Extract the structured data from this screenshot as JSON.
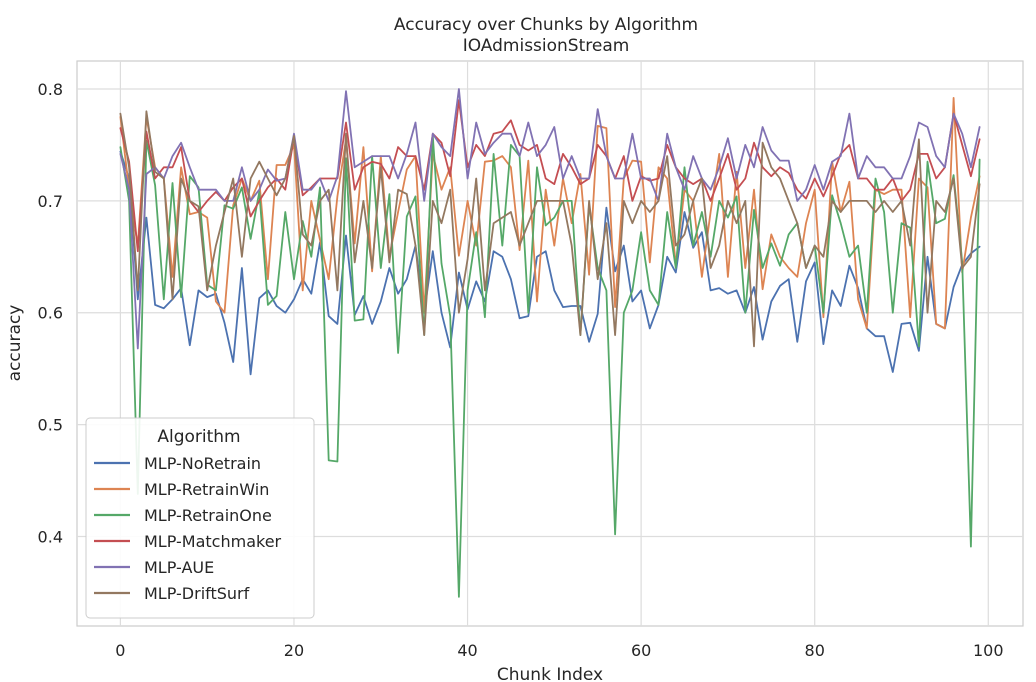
{
  "chart_data": {
    "type": "line",
    "title": "Accuracy over Chunks by Algorithm",
    "subtitle": "IOAdmissionStream",
    "xlabel": "Chunk Index",
    "ylabel": "accuracy",
    "xlim": [
      -5,
      104
    ],
    "ylim": [
      0.32,
      0.825
    ],
    "x_ticks": [
      0,
      20,
      40,
      60,
      80,
      100
    ],
    "y_ticks": [
      0.4,
      0.5,
      0.6,
      0.7,
      0.8
    ],
    "x_tick_labels": [
      "0",
      "20",
      "40",
      "60",
      "80",
      "100"
    ],
    "y_tick_labels": [
      "0.4",
      "0.5",
      "0.6",
      "0.7",
      "0.8"
    ],
    "grid": true,
    "legend": {
      "title": "Algorithm",
      "placement": "lower-left"
    },
    "series": [
      {
        "name": "MLP-NoRetrain",
        "color": "#4c72b0",
        "x": [
          0,
          1,
          2,
          3,
          4,
          5,
          6,
          7,
          8,
          9,
          10,
          11,
          12,
          13,
          14,
          15,
          16,
          17,
          18,
          19,
          20,
          21,
          22,
          23,
          24,
          25,
          26,
          27,
          28,
          29,
          30,
          31,
          32,
          33,
          34,
          35,
          36,
          37,
          38,
          39,
          40,
          41,
          42,
          43,
          44,
          45,
          46,
          47,
          48,
          49,
          50,
          51,
          52,
          53,
          54,
          55,
          56,
          57,
          58,
          59,
          60,
          61,
          62,
          63,
          64,
          65,
          66,
          67,
          68,
          69,
          70,
          71,
          72,
          73,
          74,
          75,
          76,
          77,
          78,
          79,
          80,
          81,
          82,
          83,
          84,
          85,
          86,
          87,
          88,
          89,
          90,
          91,
          92,
          93,
          94,
          95,
          96,
          97,
          98,
          99
        ],
        "values": [
          0.744,
          0.72,
          0.612,
          0.685,
          0.607,
          0.604,
          0.612,
          0.622,
          0.571,
          0.62,
          0.614,
          0.617,
          0.591,
          0.556,
          0.64,
          0.545,
          0.613,
          0.62,
          0.606,
          0.6,
          0.612,
          0.63,
          0.617,
          0.663,
          0.597,
          0.59,
          0.669,
          0.598,
          0.615,
          0.59,
          0.61,
          0.64,
          0.617,
          0.63,
          0.66,
          0.6,
          0.655,
          0.6,
          0.569,
          0.636,
          0.603,
          0.628,
          0.61,
          0.655,
          0.65,
          0.63,
          0.595,
          0.597,
          0.65,
          0.655,
          0.62,
          0.605,
          0.606,
          0.606,
          0.574,
          0.599,
          0.694,
          0.637,
          0.66,
          0.61,
          0.62,
          0.586,
          0.607,
          0.65,
          0.636,
          0.69,
          0.658,
          0.672,
          0.62,
          0.622,
          0.617,
          0.62,
          0.6,
          0.623,
          0.576,
          0.61,
          0.624,
          0.63,
          0.574,
          0.628,
          0.645,
          0.572,
          0.62,
          0.606,
          0.642,
          0.622,
          0.586,
          0.579,
          0.579,
          0.547,
          0.59,
          0.591,
          0.566,
          0.65,
          0.59,
          0.586,
          0.623,
          0.643,
          0.653,
          0.659
        ]
      },
      {
        "name": "MLP-RetrainWin",
        "color": "#dd8452",
        "x": [
          0,
          1,
          2,
          3,
          4,
          5,
          6,
          7,
          8,
          9,
          10,
          11,
          12,
          13,
          14,
          15,
          16,
          17,
          18,
          19,
          20,
          21,
          22,
          23,
          24,
          25,
          26,
          27,
          28,
          29,
          30,
          31,
          32,
          33,
          34,
          35,
          36,
          37,
          38,
          39,
          40,
          41,
          42,
          43,
          44,
          45,
          46,
          47,
          48,
          49,
          50,
          51,
          52,
          53,
          54,
          55,
          56,
          57,
          58,
          59,
          60,
          61,
          62,
          63,
          64,
          65,
          66,
          67,
          68,
          69,
          70,
          71,
          72,
          73,
          74,
          75,
          76,
          77,
          78,
          79,
          80,
          81,
          82,
          83,
          84,
          85,
          86,
          87,
          88,
          89,
          90,
          91,
          92,
          93,
          94,
          95,
          96,
          97,
          98,
          99
        ],
        "values": [
          0.775,
          0.71,
          0.66,
          0.775,
          0.73,
          0.72,
          0.632,
          0.73,
          0.688,
          0.69,
          0.685,
          0.61,
          0.6,
          0.696,
          0.72,
          0.7,
          0.718,
          0.63,
          0.732,
          0.732,
          0.75,
          0.62,
          0.7,
          0.665,
          0.63,
          0.704,
          0.755,
          0.662,
          0.748,
          0.637,
          0.74,
          0.65,
          0.69,
          0.728,
          0.74,
          0.6,
          0.742,
          0.71,
          0.73,
          0.651,
          0.7,
          0.66,
          0.735,
          0.736,
          0.74,
          0.73,
          0.656,
          0.736,
          0.61,
          0.71,
          0.66,
          0.72,
          0.68,
          0.724,
          0.634,
          0.767,
          0.765,
          0.605,
          0.72,
          0.736,
          0.735,
          0.645,
          0.73,
          0.72,
          0.643,
          0.71,
          0.7,
          0.632,
          0.69,
          0.742,
          0.632,
          0.726,
          0.64,
          0.71,
          0.621,
          0.67,
          0.65,
          0.64,
          0.632,
          0.68,
          0.71,
          0.596,
          0.735,
          0.69,
          0.717,
          0.612,
          0.586,
          0.71,
          0.706,
          0.71,
          0.71,
          0.596,
          0.72,
          0.712,
          0.59,
          0.586,
          0.792,
          0.636,
          0.685,
          0.722
        ]
      },
      {
        "name": "MLP-RetrainOne",
        "color": "#55a868",
        "x": [
          0,
          1,
          2,
          3,
          4,
          5,
          6,
          7,
          8,
          9,
          10,
          11,
          12,
          13,
          14,
          15,
          16,
          17,
          18,
          19,
          20,
          21,
          22,
          23,
          24,
          25,
          26,
          27,
          28,
          29,
          30,
          31,
          32,
          33,
          34,
          35,
          36,
          37,
          38,
          39,
          40,
          41,
          42,
          43,
          44,
          45,
          46,
          47,
          48,
          49,
          50,
          51,
          52,
          53,
          54,
          55,
          56,
          57,
          58,
          59,
          60,
          61,
          62,
          63,
          64,
          65,
          66,
          67,
          68,
          69,
          70,
          71,
          72,
          73,
          74,
          75,
          76,
          77,
          78,
          79,
          80,
          81,
          82,
          83,
          84,
          85,
          86,
          87,
          88,
          89,
          90,
          91,
          92,
          93,
          94,
          95,
          96,
          97,
          98,
          99
        ],
        "values": [
          0.748,
          0.7,
          0.438,
          0.754,
          0.714,
          0.612,
          0.716,
          0.614,
          0.722,
          0.712,
          0.625,
          0.62,
          0.696,
          0.693,
          0.712,
          0.666,
          0.708,
          0.607,
          0.615,
          0.69,
          0.63,
          0.682,
          0.65,
          0.712,
          0.468,
          0.467,
          0.738,
          0.593,
          0.594,
          0.74,
          0.64,
          0.706,
          0.564,
          0.686,
          0.704,
          0.58,
          0.758,
          0.644,
          0.597,
          0.346,
          0.62,
          0.672,
          0.596,
          0.742,
          0.66,
          0.75,
          0.74,
          0.6,
          0.73,
          0.678,
          0.685,
          0.7,
          0.7,
          0.58,
          0.697,
          0.64,
          0.62,
          0.402,
          0.6,
          0.62,
          0.672,
          0.62,
          0.607,
          0.69,
          0.64,
          0.73,
          0.66,
          0.69,
          0.65,
          0.7,
          0.685,
          0.704,
          0.6,
          0.692,
          0.64,
          0.662,
          0.642,
          0.67,
          0.68,
          0.64,
          0.66,
          0.6,
          0.705,
          0.68,
          0.65,
          0.66,
          0.6,
          0.72,
          0.69,
          0.6,
          0.68,
          0.676,
          0.57,
          0.735,
          0.68,
          0.684,
          0.723,
          0.645,
          0.391,
          0.737
        ]
      },
      {
        "name": "MLP-Matchmaker",
        "color": "#c44e52",
        "x": [
          0,
          1,
          2,
          3,
          4,
          5,
          6,
          7,
          8,
          9,
          10,
          11,
          12,
          13,
          14,
          15,
          16,
          17,
          18,
          19,
          20,
          21,
          22,
          23,
          24,
          25,
          26,
          27,
          28,
          29,
          30,
          31,
          32,
          33,
          34,
          35,
          36,
          37,
          38,
          39,
          40,
          41,
          42,
          43,
          44,
          45,
          46,
          47,
          48,
          49,
          50,
          51,
          52,
          53,
          54,
          55,
          56,
          57,
          58,
          59,
          60,
          61,
          62,
          63,
          64,
          65,
          66,
          67,
          68,
          69,
          70,
          71,
          72,
          73,
          74,
          75,
          76,
          77,
          78,
          79,
          80,
          81,
          82,
          83,
          84,
          85,
          86,
          87,
          88,
          89,
          90,
          91,
          92,
          93,
          94,
          95,
          96,
          97,
          98,
          99
        ],
        "values": [
          0.765,
          0.735,
          0.655,
          0.762,
          0.72,
          0.73,
          0.73,
          0.748,
          0.7,
          0.69,
          0.7,
          0.708,
          0.7,
          0.712,
          0.72,
          0.686,
          0.7,
          0.712,
          0.72,
          0.71,
          0.757,
          0.705,
          0.712,
          0.72,
          0.72,
          0.72,
          0.77,
          0.71,
          0.73,
          0.735,
          0.733,
          0.72,
          0.748,
          0.74,
          0.74,
          0.71,
          0.76,
          0.752,
          0.722,
          0.79,
          0.73,
          0.75,
          0.74,
          0.76,
          0.762,
          0.772,
          0.75,
          0.745,
          0.75,
          0.72,
          0.715,
          0.742,
          0.73,
          0.715,
          0.72,
          0.75,
          0.74,
          0.72,
          0.74,
          0.7,
          0.722,
          0.718,
          0.72,
          0.75,
          0.73,
          0.72,
          0.715,
          0.72,
          0.7,
          0.72,
          0.742,
          0.71,
          0.72,
          0.752,
          0.73,
          0.722,
          0.73,
          0.725,
          0.71,
          0.702,
          0.72,
          0.704,
          0.722,
          0.742,
          0.75,
          0.72,
          0.72,
          0.71,
          0.71,
          0.72,
          0.7,
          0.71,
          0.742,
          0.742,
          0.72,
          0.73,
          0.778,
          0.75,
          0.722,
          0.755
        ]
      },
      {
        "name": "MLP-AUE",
        "color": "#8172b3",
        "x": [
          0,
          1,
          2,
          3,
          4,
          5,
          6,
          7,
          8,
          9,
          10,
          11,
          12,
          13,
          14,
          15,
          16,
          17,
          18,
          19,
          20,
          21,
          22,
          23,
          24,
          25,
          26,
          27,
          28,
          29,
          30,
          31,
          32,
          33,
          34,
          35,
          36,
          37,
          38,
          39,
          40,
          41,
          42,
          43,
          44,
          45,
          46,
          47,
          48,
          49,
          50,
          51,
          52,
          53,
          54,
          55,
          56,
          57,
          58,
          59,
          60,
          61,
          62,
          63,
          64,
          65,
          66,
          67,
          68,
          69,
          70,
          71,
          72,
          73,
          74,
          75,
          76,
          77,
          78,
          79,
          80,
          81,
          82,
          83,
          84,
          85,
          86,
          87,
          88,
          89,
          90,
          91,
          92,
          93,
          94,
          95,
          96,
          97,
          98,
          99
        ],
        "values": [
          0.742,
          0.71,
          0.568,
          0.724,
          0.73,
          0.72,
          0.74,
          0.752,
          0.73,
          0.71,
          0.71,
          0.71,
          0.7,
          0.7,
          0.73,
          0.7,
          0.71,
          0.728,
          0.718,
          0.72,
          0.76,
          0.71,
          0.71,
          0.72,
          0.7,
          0.722,
          0.798,
          0.73,
          0.735,
          0.74,
          0.74,
          0.74,
          0.72,
          0.742,
          0.77,
          0.7,
          0.76,
          0.748,
          0.74,
          0.8,
          0.72,
          0.77,
          0.742,
          0.752,
          0.76,
          0.76,
          0.74,
          0.77,
          0.74,
          0.75,
          0.766,
          0.72,
          0.74,
          0.72,
          0.72,
          0.782,
          0.74,
          0.72,
          0.72,
          0.76,
          0.72,
          0.72,
          0.7,
          0.76,
          0.73,
          0.71,
          0.74,
          0.72,
          0.71,
          0.73,
          0.756,
          0.72,
          0.75,
          0.73,
          0.766,
          0.745,
          0.736,
          0.736,
          0.7,
          0.71,
          0.732,
          0.71,
          0.735,
          0.74,
          0.778,
          0.72,
          0.74,
          0.73,
          0.73,
          0.72,
          0.72,
          0.74,
          0.77,
          0.766,
          0.74,
          0.73,
          0.778,
          0.76,
          0.73,
          0.766
        ]
      },
      {
        "name": "MLP-DriftSurf",
        "color": "#937860",
        "x": [
          0,
          1,
          2,
          3,
          4,
          5,
          6,
          7,
          8,
          9,
          10,
          11,
          12,
          13,
          14,
          15,
          16,
          17,
          18,
          19,
          20,
          21,
          22,
          23,
          24,
          25,
          26,
          27,
          28,
          29,
          30,
          31,
          32,
          33,
          34,
          35,
          36,
          37,
          38,
          39,
          40,
          41,
          42,
          43,
          44,
          45,
          46,
          47,
          48,
          49,
          50,
          51,
          52,
          53,
          54,
          55,
          56,
          57,
          58,
          59,
          60,
          61,
          62,
          63,
          64,
          65,
          66,
          67,
          68,
          69,
          70,
          71,
          72,
          73,
          74,
          75,
          76,
          77,
          78,
          79,
          80,
          81,
          82,
          83,
          84,
          85,
          86,
          87,
          88,
          89,
          90,
          91,
          92,
          93,
          94,
          95,
          96,
          97,
          98,
          99
        ],
        "values": [
          0.778,
          0.73,
          0.62,
          0.78,
          0.726,
          0.72,
          0.612,
          0.72,
          0.7,
          0.695,
          0.62,
          0.66,
          0.69,
          0.72,
          0.65,
          0.72,
          0.735,
          0.72,
          0.705,
          0.72,
          0.758,
          0.67,
          0.66,
          0.7,
          0.71,
          0.62,
          0.76,
          0.645,
          0.7,
          0.64,
          0.73,
          0.645,
          0.71,
          0.706,
          0.66,
          0.58,
          0.7,
          0.68,
          0.71,
          0.6,
          0.648,
          0.72,
          0.62,
          0.68,
          0.685,
          0.69,
          0.66,
          0.68,
          0.7,
          0.7,
          0.7,
          0.7,
          0.66,
          0.58,
          0.7,
          0.63,
          0.68,
          0.58,
          0.7,
          0.68,
          0.7,
          0.69,
          0.7,
          0.74,
          0.66,
          0.67,
          0.7,
          0.72,
          0.64,
          0.66,
          0.7,
          0.68,
          0.7,
          0.57,
          0.752,
          0.73,
          0.72,
          0.7,
          0.68,
          0.64,
          0.66,
          0.65,
          0.7,
          0.69,
          0.7,
          0.7,
          0.7,
          0.69,
          0.7,
          0.69,
          0.7,
          0.66,
          0.755,
          0.6,
          0.7,
          0.69,
          0.72,
          0.64,
          0.65,
          0.715
        ]
      }
    ]
  }
}
